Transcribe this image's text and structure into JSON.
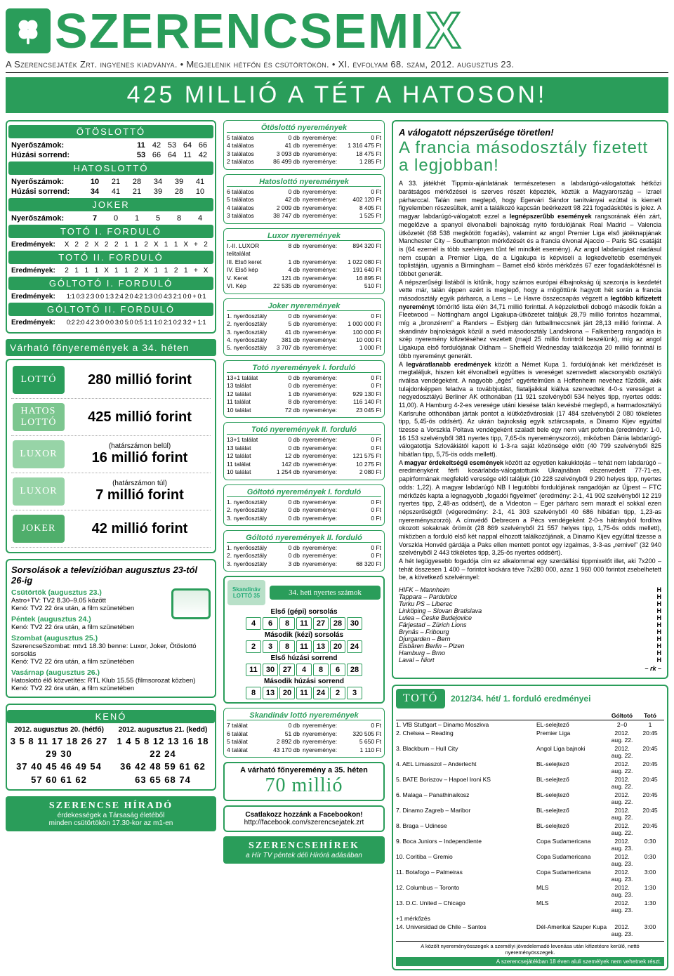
{
  "masthead": {
    "logo": "SZERENCSEMI",
    "x": "X"
  },
  "tagline": "A Szerencsejáték Zrt. ingyenes kiadványa.  •  Megjelenik hétfőn és csütörtökön.  •  XI. évfolyam 68. szám, 2012. augusztus 23.",
  "banner": "425 MILLIÓ A TÉT A HATOSON!",
  "otos": {
    "title": "ÖTÖSLOTTÓ",
    "r1l": "Nyerőszámok:",
    "r1": [
      "11",
      "42",
      "53",
      "64",
      "66"
    ],
    "r2l": "Húzási sorrend:",
    "r2": [
      "53",
      "66",
      "64",
      "11",
      "42"
    ]
  },
  "hatos": {
    "title": "HATOSLOTTÓ",
    "r1l": "Nyerőszámok:",
    "r1": [
      "10",
      "21",
      "28",
      "34",
      "39",
      "41"
    ],
    "r2l": "Húzási sorrend:",
    "r2": [
      "34",
      "41",
      "21",
      "39",
      "28",
      "10"
    ]
  },
  "joker": {
    "title": "JOKER",
    "r1l": "Nyerőszámok:",
    "r1": [
      "7",
      "0",
      "1",
      "5",
      "8",
      "4"
    ]
  },
  "toto1": {
    "title": "TOTÓ I. FORDULÓ",
    "lbl": "Eredmények:",
    "v": [
      "X",
      "2",
      "2",
      "X",
      "2",
      "2",
      "1",
      "1",
      "2",
      "X",
      "1",
      "1",
      "X",
      "+",
      "2"
    ]
  },
  "toto2": {
    "title": "TOTÓ II. FORDULÓ",
    "lbl": "Eredmények:",
    "v": [
      "2",
      "1",
      "1",
      "1",
      "X",
      "1",
      "1",
      "2",
      "X",
      "1",
      "1",
      "2",
      "1",
      "+",
      "X"
    ]
  },
  "gol1": {
    "title": "GÓLTOTÓ I. FORDULÓ",
    "lbl": "Eredmények:",
    "v": "1:1 0:3 2:3 0:0 1:3 2:4 2:0 4:2 1:3 0:0 4:3 2:1 0:0 + 0:1"
  },
  "gol2": {
    "title": "GÓLTOTÓ II. FORDULÓ",
    "lbl": "Eredmények:",
    "v": "0:2 2:0 4:2 3:0 0:0 3:0 5:0 0:5 1:1 1:0 2:1 0:2 3:2 + 1:1"
  },
  "jack_head": "Várható főnyeremények a 34. héten",
  "jacks": [
    {
      "logo": "LOTTÓ",
      "bg": "#2a9d5a",
      "sub": "",
      "val": "280 millió forint"
    },
    {
      "logo": "HATOS\nLOTTÓ",
      "bg": "#7cc68f",
      "sub": "",
      "val": "425 millió forint"
    },
    {
      "logo": "LUXOR",
      "bg": "#97d4a7",
      "sub": "(határszámon belül)",
      "val": "16 millió forint"
    },
    {
      "logo": "LUXOR",
      "bg": "#97d4a7",
      "sub": "(határszámon túl)",
      "val": "7 millió forint"
    },
    {
      "logo": "JOKER",
      "bg": "#4fae6b",
      "sub": "",
      "val": "42 millió forint"
    }
  ],
  "tv_head": "Sorsolások a televízióban augusztus 23-tól 26-ig",
  "tv": [
    {
      "d": "Csütörtök (augusztus 23.)",
      "l": [
        "Astro+TV: TV2 8.30–9.05 között",
        "Kenó: TV2 22 óra után, a film szünetében"
      ]
    },
    {
      "d": "Péntek (augusztus 24.)",
      "l": [
        "Kenó: TV2 22 óra után, a film szünetében"
      ]
    },
    {
      "d": "Szombat (augusztus 25.)",
      "l": [
        "SzerencseSzombat: mtv1 18.30 benne: Luxor, Joker, Ötöslottó sorsolás",
        "Kenó: TV2 22 óra után, a film szünetében"
      ]
    },
    {
      "d": "Vasárnap (augusztus 26.)",
      "l": [
        "Hatoslottó élő közvetítés: RTL Klub 15.55 (filmsorozat közben)",
        "Kenó: TV2 22 óra után, a film szünetében"
      ]
    }
  ],
  "keno_title": "KENÓ",
  "keno": [
    {
      "d": "2012. augusztus 20. (hétfő)",
      "n": "3  5  8 11 17 18 26 27 29 30\n37 40 45 46 49 54 57 60 61 62"
    },
    {
      "d": "2012. augusztus 21. (kedd)",
      "n": "1  4  5  8 12 13 16 18 22 24\n36 42 48 59 61 62 63 65 68 74"
    }
  ],
  "hirado": {
    "t": "SZERENCSE HÍRADÓ",
    "s": "érdekességek a Társaság életéből\nminden csütörtökön 17.30-kor az m1-en"
  },
  "mid": [
    {
      "h": "Ötöslottó nyeremények",
      "rows": [
        [
          "5 találatos",
          "0 db",
          "nyereménye:",
          "0 Ft"
        ],
        [
          "4 találatos",
          "41 db",
          "nyereménye:",
          "1 316 475 Ft"
        ],
        [
          "3 találatos",
          "3 093 db",
          "nyereménye:",
          "18 475 Ft"
        ],
        [
          "2 találatos",
          "86 499 db",
          "nyereménye:",
          "1 285 Ft"
        ]
      ]
    },
    {
      "h": "Hatoslottó nyeremények",
      "rows": [
        [
          "6 találatos",
          "0 db",
          "nyereménye:",
          "0 Ft"
        ],
        [
          "5 találatos",
          "42 db",
          "nyereménye:",
          "402 120 Ft"
        ],
        [
          "4 találatos",
          "2 009 db",
          "nyereménye:",
          "8 405 Ft"
        ],
        [
          "3 találatos",
          "38 747 db",
          "nyereménye:",
          "1 525 Ft"
        ]
      ]
    },
    {
      "h": "Luxor nyeremények",
      "rows": [
        [
          "I.-II. LUXOR telitalálat",
          "8 db",
          "nyereménye:",
          "894 320 Ft"
        ],
        [
          "III. Első keret",
          "1 db",
          "nyereménye:",
          "1 022 080 Ft"
        ],
        [
          "IV. Első kép",
          "4 db",
          "nyereménye:",
          "191 640 Ft"
        ],
        [
          "V. Keret",
          "121 db",
          "nyereménye:",
          "16 895 Ft"
        ],
        [
          "VI. Kép",
          "22 535 db",
          "nyereménye:",
          "510 Ft"
        ]
      ]
    },
    {
      "h": "Joker nyeremények",
      "rows": [
        [
          "1. nyerőosztály",
          "0 db",
          "nyereménye:",
          "0 Ft"
        ],
        [
          "2. nyerőosztály",
          "5 db",
          "nyereménye:",
          "1 000 000 Ft"
        ],
        [
          "3. nyerőosztály",
          "41 db",
          "nyereménye:",
          "100 000 Ft"
        ],
        [
          "4. nyerőosztály",
          "381 db",
          "nyereménye:",
          "10 000 Ft"
        ],
        [
          "5. nyerőosztály",
          "3 707 db",
          "nyereménye:",
          "1 000 Ft"
        ]
      ]
    },
    {
      "h": "Totó nyeremények I. forduló",
      "rows": [
        [
          "13+1 találat",
          "0 db",
          "nyereménye:",
          "0 Ft"
        ],
        [
          "13 találat",
          "0 db",
          "nyereménye:",
          "0 Ft"
        ],
        [
          "12 találat",
          "1 db",
          "nyereménye:",
          "929 130 Ft"
        ],
        [
          "11 találat",
          "8 db",
          "nyereménye:",
          "116 140 Ft"
        ],
        [
          "10 találat",
          "72 db",
          "nyereménye:",
          "23 045 Ft"
        ]
      ]
    },
    {
      "h": "Totó nyeremények II. forduló",
      "rows": [
        [
          "13+1 találat",
          "0 db",
          "nyereménye:",
          "0 Ft"
        ],
        [
          "13 találat",
          "0 db",
          "nyereménye:",
          "0 Ft"
        ],
        [
          "12 találat",
          "12 db",
          "nyereménye:",
          "121 575 Ft"
        ],
        [
          "11 találat",
          "142 db",
          "nyereménye:",
          "10 275 Ft"
        ],
        [
          "10 találat",
          "1 254 db",
          "nyereménye:",
          "2 080 Ft"
        ]
      ]
    },
    {
      "h": "Góltotó nyeremények I. forduló",
      "rows": [
        [
          "1. nyerőosztály",
          "0 db",
          "nyereménye:",
          "0 Ft"
        ],
        [
          "2. nyerőosztály",
          "0 db",
          "nyereménye:",
          "0 Ft"
        ],
        [
          "3. nyerőosztály",
          "0 db",
          "nyereménye:",
          "0 Ft"
        ]
      ]
    },
    {
      "h": "Góltotó nyeremények II. forduló",
      "rows": [
        [
          "1. nyerőosztály",
          "0 db",
          "nyereménye:",
          "0 Ft"
        ],
        [
          "2. nyerőosztály",
          "0 db",
          "nyereménye:",
          "0 Ft"
        ],
        [
          "3. nyerőosztály",
          "3 db",
          "nyereménye:",
          "68 320 Ft"
        ]
      ]
    }
  ],
  "skand": {
    "logo": "Skandináv\nLOTTÓ 35",
    "title": "34. heti nyertes számok",
    "l1": "Első (gépi) sorsolás",
    "n1": [
      "4",
      "6",
      "8",
      "11",
      "27",
      "28",
      "30"
    ],
    "l2": "Második (kézi) sorsolás",
    "n2": [
      "2",
      "3",
      "8",
      "11",
      "13",
      "20",
      "24"
    ],
    "l3": "Első húzási sorrend",
    "n3": [
      "11",
      "30",
      "27",
      "4",
      "8",
      "6",
      "28"
    ],
    "l4": "Második húzási sorrend",
    "n4": [
      "8",
      "13",
      "20",
      "11",
      "24",
      "2",
      "3"
    ]
  },
  "skand_prize": {
    "h": "Skandináv lottó nyeremények",
    "rows": [
      [
        "7 találat",
        "0 db",
        "nyereménye:",
        "0 Ft"
      ],
      [
        "6 találat",
        "51 db",
        "nyereménye:",
        "320 505 Ft"
      ],
      [
        "5 találat",
        "2 892 db",
        "nyereménye:",
        "5 650 Ft"
      ],
      [
        "4 találat",
        "43 170 db",
        "nyereménye:",
        "1 110 Ft"
      ]
    ]
  },
  "expect": {
    "t": "A várható főnyeremény a 35. héten",
    "v": "70 millió"
  },
  "fb": {
    "t": "Csatlakozz hozzánk a Facebookon!",
    "u": "http://facebook.com/szerencsejatek.zrt"
  },
  "hirek": {
    "t": "SZERENCSEHÍREK",
    "s": "a Hír TV péntek déli Hírórá adásában"
  },
  "article": {
    "kicker": "A válogatott népszerűsége töretlen!",
    "title": "A francia másodosztály fizetett a legjobban!",
    "body": "A 33. játékhét Tippmix-ajánlatának természetesen a labdarúgó-válogatottak hétközi barátságos mérkőzései is szerves részét képezték, köztük a Magyarország – Izrael párharccal. Talán nem meglepő, hogy Egervári Sándor tanítványai ezúttal is kiemelt figyelemben részesültek, amit a találkozó kapcsán beérkezett 98 221 fogadáskötés is jelez. A magyar labdarúgó-válogatott ezzel a <b>legnépszerűbb események</b> rangsorának élén zárt, megelőzve a spanyol élvonalbeli bajnokság nyitó fordulójának Real Madrid – Valencia ütközetét (68 538 megkötött fogadás), valamint az angol Premier Liga első játéknapjának Manchester City – Southampton mérkőzését és a francia élvonal Ajaccio – Paris SG csatáját is (64 ezernél is több szelvényen tűnt fel mindkét esemény). Az angol labdarúgást ráadásul nem csupán a Premier Liga, de a Ligakupa is képviseli a legkedveltebb események toplistáján, ugyanis a Birmingham – Barnet első körös mérkőzés 67 ezer fogadáskötésnél is többet generált.\n   A népszerűségi listából is kitűnik, hogy számos európai élbajnokság új szezonja is kezdetét vette már, talán éppen ezért is meglepő, hogy a mögöttünk hagyott hét során a francia másodosztály egyik párharca, a Lens – Le Havre összecsapás végzett a <b>legtöbb kifizetett nyereményt</b> tömörítő lista élén 34,71 millió forinttal. A képzeletbeli dobogó második fokán a Fleetwood – Nottingham angol Ligakupa-ütközetet találjuk 28,79 millió forintos hozammal, míg a „bronzérem” a Randers – Esbjerg dán futballmeccsnek járt 28,13 millió forinttal. A skandináv bajnokságok közül a svéd másodosztály Landskrona – Falkenberg rangadója is szép nyeremény kifizetéséhez vezetett (majd 25 millió forintról beszélünk), míg az angol Ligakupa első fordulójának Oldham – Sheffield Wednesday találkozója 20 millió forintnál is több nyereményt generált.\n   A <b>legváratlanabb eredmények</b> között a Német Kupa 1. fordulójának két mérkőzését is megtaláljuk, hiszen két élvonalbeli együttes is vereséget szenvedett alacsonyabb osztályú riválisa vendégeként. A nagyobb „égés” egyértelműen a Hoffenheim nevéhez fűződik, akik tulajdonképpen feladva a továbbjutást, fiataljaikkal kiállva szenvedtek 4-0-s vereséget a negyedosztályú Berliner AK otthonában (11 921 szelvényből 534 helyes tipp, nyertes odds: 11,00). A Hamburg 4-2-es veresége utáni kiesése talán kevésbé meglepő, a harmadosztályú Karlsruhe otthonában jártak pontot a kiütközővárosiak (17 484 szelvényből 2 080 tökéletes tipp, 5,45-ös oddsért). Az ukrán bajnokság egyik sztárcsapata, a Dinamo Kijev egyúttal tizesse a Vorszkla Poltava vendégeként szaladt bele egy nem várt pofonba (eredmény: 1-0, 16 153 szelvényből 381 nyertes tipp, 7,65-ös nyereményszorzó), miközben Dánia labdarúgó-válogatottja Szlovákiától kapott ki 1-3-ra saját közönsége előtt (40 799 szelvényből 825 hibátlan tipp, 5,75-ös odds mellett).\n   A <b>magyar érdekeltségű események</b> között az egyetlen kakukktojás – tehát nem labdarúgó – eredményként férfi kosárlabda-válogatottunk Ukrajnában elszenvedett 77-71-es, papírformának megfelelő veresége elől találjuk (10 228 szelvényből 9 290 helyes tipp, nyertes odds: 1,22). A magyar labdarúgó NB I legutóbbi fordulójának rangadóján az Újpest – FTC mérkőzés kapta a legnagyobb „fogadói figyelmet” (eredmény: 2-1, 41 902 szelvényből 12 219 nyertes tipp, 2,48-as oddsért), de a Videoton – Eger párharc sem maradt el sokkal ezen népszerűségtől (végeredmény: 2-1, 41 303 szelvényből 40 686 hibátlan tipp, 1,23-as nyereményszorzó). A címvédő Debrecen a Pécs vendégeként 2-0-s hátrányból fordítva okozott sokaknak örömöt (28 869 szelvényből 21 557 helyes tipp, 1,75-ös odds mellett), miközben a forduló első két nappal elhozott találkozójának, a Dinamo Kijev egyúttal tizesse a Vorszkla Honvéd gárdája a Paks ellen mentett pontot egy izgalmas, 3-3-as „remivel” (32 940 szelvényből 2 443 tökéletes tipp, 3,25-ös nyertes oddsért).\n   A hét legügyesebb fogadója cím ez alkalommal egy szerdállási tippmixelőt illet, aki 7x200 – tehát összesen 1 400 – forintot kockára téve 7x280 000, azaz 1 960 000 forintot zsebelhetett be, a következő szelvénnyel:",
    "matches": [
      [
        "HIFK – Mannheim",
        "H"
      ],
      [
        "Tappara – Pardubice",
        "H"
      ],
      [
        "Turku PS – Liberec",
        "H"
      ],
      [
        "Linköping – Slovan Bratislava",
        "H"
      ],
      [
        "Lulea – Ceske Budejovice",
        "H"
      ],
      [
        "Färjestad – Zürich Lions",
        "H"
      ],
      [
        "Brynäs – Fribourg",
        "H"
      ],
      [
        "Djurgarden – Bern",
        "H"
      ],
      [
        "Eisbären Berlin – Plzen",
        "H"
      ],
      [
        "Hamburg – Brno",
        "H"
      ],
      [
        "Laval – Niort",
        "H"
      ]
    ],
    "sig": "– rk –"
  },
  "totores": {
    "label": "TOTÓ",
    "sub": "2012/34. hét/ 1. forduló eredményei",
    "th": [
      "",
      "",
      "Góltotó",
      "Totó"
    ],
    "rows": [
      [
        "1. VfB Stuttgart – Dinamo Moszkva",
        "EL-selejtező",
        "2–0",
        "1"
      ],
      [
        "2. Chelsea – Reading",
        "Premier Liga",
        "2012. aug. 22.",
        "20:45"
      ],
      [
        "3. Blackburn – Hull City",
        "Angol Liga bajnoki",
        "2012. aug. 22.",
        "20:45"
      ],
      [
        "4. AEL Limasszol – Anderlecht",
        "BL-selejtező",
        "2012. aug. 22.",
        "20:45"
      ],
      [
        "5. BATE Boriszov – Hapoel Ironi KS",
        "BL-selejtező",
        "2012. aug. 22.",
        "20:45"
      ],
      [
        "6. Malaga – Panathinaikosz",
        "BL-selejtező",
        "2012. aug. 22.",
        "20:45"
      ],
      [
        "7. Dinamo Zagreb – Maribor",
        "BL-selejtező",
        "2012. aug. 22.",
        "20:45"
      ],
      [
        "8. Braga – Udinese",
        "BL-selejtező",
        "2012. aug. 22.",
        "20:45"
      ],
      [
        "9. Boca Juniors – Independiente",
        "Copa Sudamericana",
        "2012. aug. 23.",
        "0:30"
      ],
      [
        "10. Coritiba – Gremio",
        "Copa Sudamericana",
        "2012. aug. 23.",
        "0:30"
      ],
      [
        "11. Botafogo – Palmeiras",
        "Copa Sudamericana",
        "2012. aug. 23.",
        "3:00"
      ],
      [
        "12. Columbus – Toronto",
        "MLS",
        "2012. aug. 23.",
        "1:30"
      ],
      [
        "13. D.C. United – Chicago",
        "MLS",
        "2012. aug. 23.",
        "1:30"
      ],
      [
        "+1 mérkőzés",
        "",
        "",
        ""
      ],
      [
        "14. Universidad de Chile – Santos",
        "Dél-Amerikai Szuper Kupa",
        "2012. aug. 23.",
        "3:00"
      ]
    ],
    "foot": "A közölt nyereményösszegek a személyi jövedelemadó levonása után kifizetésre kerülő, nettó nyereményösszegek.",
    "foot2": "A szerencsejátékban 18 éven aluli személyek nem vehetnek részt."
  }
}
